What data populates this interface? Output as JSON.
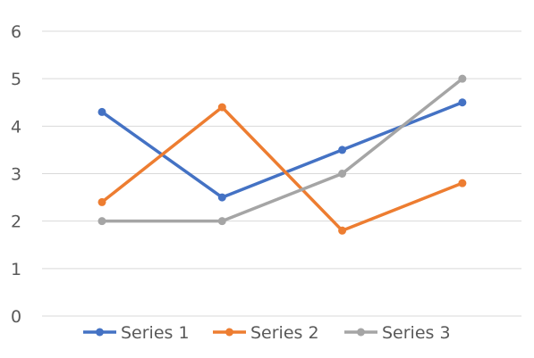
{
  "chart_data": {
    "type": "line",
    "title": "",
    "xlabel": "",
    "ylabel": "",
    "categories": [
      "",
      "",
      "",
      ""
    ],
    "ylim": [
      0,
      6
    ],
    "yticks": [
      0,
      1,
      2,
      3,
      4,
      5,
      6
    ],
    "grid": "horizontal",
    "legend_position": "bottom",
    "series": [
      {
        "name": "Series 1",
        "color": "#4472C4",
        "values": [
          4.3,
          2.5,
          3.5,
          4.5
        ]
      },
      {
        "name": "Series 2",
        "color": "#ED7D31",
        "values": [
          2.4,
          4.4,
          1.8,
          2.8
        ]
      },
      {
        "name": "Series 3",
        "color": "#A5A5A5",
        "values": [
          2.0,
          2.0,
          3.0,
          5.0
        ]
      }
    ]
  }
}
